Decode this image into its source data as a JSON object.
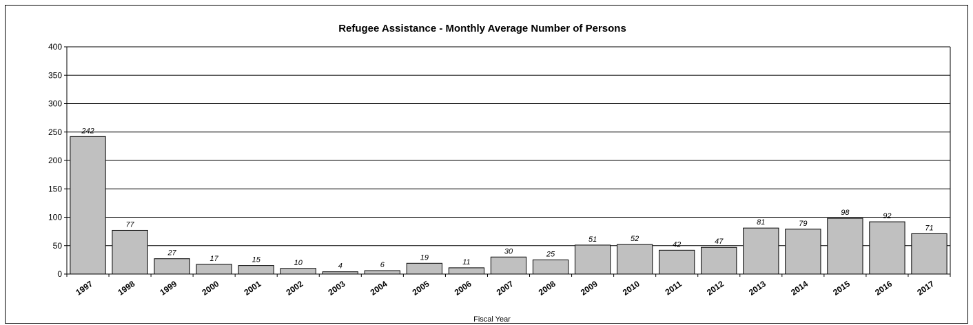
{
  "chart_data": {
    "type": "bar",
    "title": "Refugee Assistance - Monthly Average Number of Persons",
    "xlabel": "Fiscal Year",
    "ylabel": "",
    "ylim": [
      0,
      400
    ],
    "yticks": [
      0,
      50,
      100,
      150,
      200,
      250,
      300,
      350,
      400
    ],
    "grid": true,
    "categories": [
      "1997",
      "1998",
      "1999",
      "2000",
      "2001",
      "2002",
      "2003",
      "2004",
      "2005",
      "2006",
      "2007",
      "2008",
      "2009",
      "2010",
      "2011",
      "2012",
      "2013",
      "2014",
      "2015",
      "2016",
      "2017"
    ],
    "values": [
      242,
      77,
      27,
      17,
      15,
      10,
      4,
      6,
      19,
      11,
      30,
      25,
      51,
      52,
      42,
      47,
      81,
      79,
      98,
      92,
      71
    ],
    "bar_color": "#c0c0c0"
  }
}
